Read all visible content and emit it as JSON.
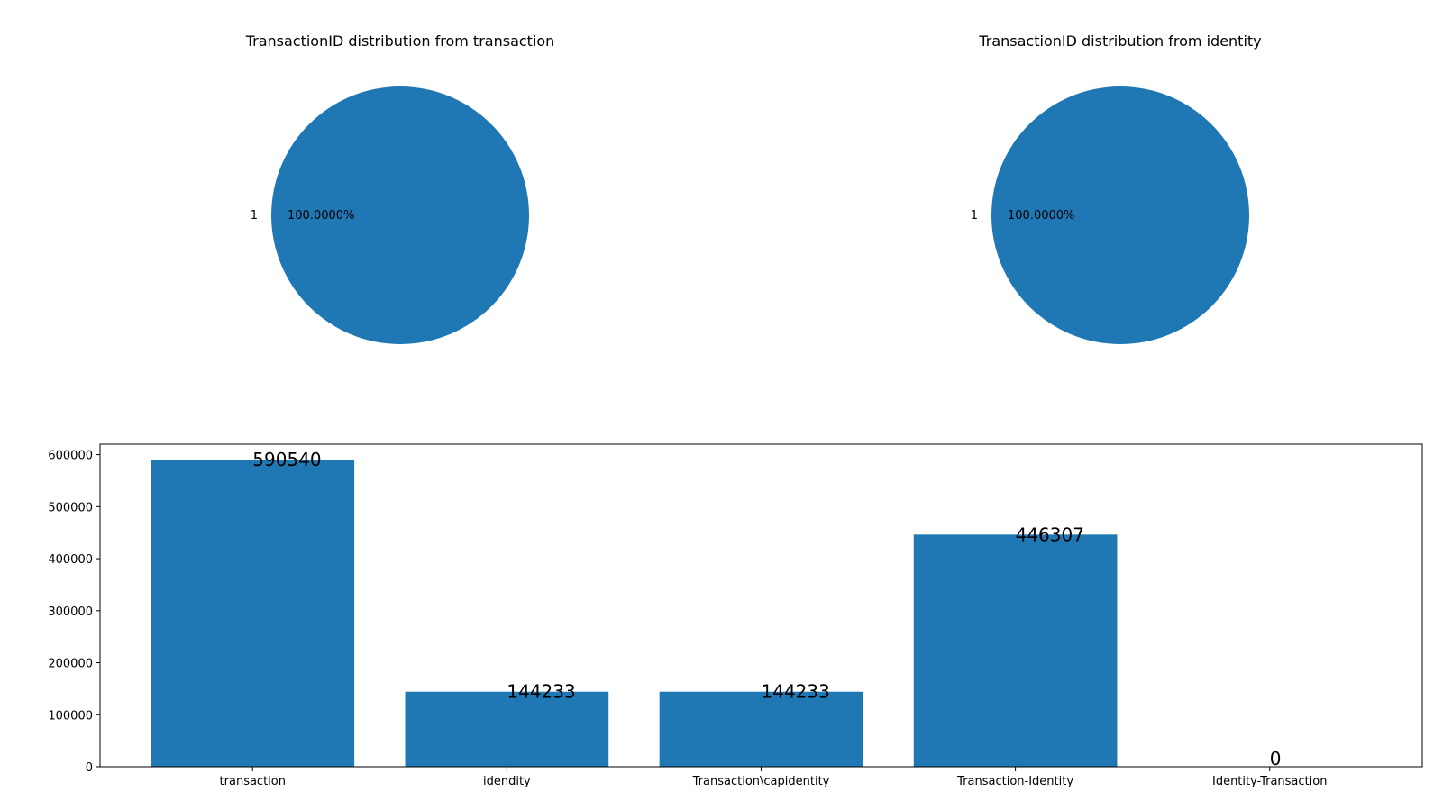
{
  "colors": {
    "series": "#1f77b4",
    "axis": "#000000",
    "background": "#ffffff"
  },
  "chart_data": [
    {
      "type": "pie",
      "title": "TransactionID distribution from transaction",
      "labels": [
        "1"
      ],
      "values": [
        100.0
      ],
      "autopct": [
        "100.0000%"
      ]
    },
    {
      "type": "pie",
      "title": "TransactionID distribution from identity",
      "labels": [
        "1"
      ],
      "values": [
        100.0
      ],
      "autopct": [
        "100.0000%"
      ]
    },
    {
      "type": "bar",
      "title": "",
      "xlabel": "",
      "ylabel": "",
      "categories": [
        "transaction",
        "idendity",
        "Transaction\\capidentity",
        "Transaction-Identity",
        "Identity-Transaction"
      ],
      "values": [
        590540,
        144233,
        144233,
        446307,
        0
      ],
      "data_labels": [
        "590540",
        "144233",
        "144233",
        "446307",
        "0"
      ],
      "ylim": [
        0,
        620077
      ],
      "yticks": [
        0,
        100000,
        200000,
        300000,
        400000,
        500000,
        600000
      ],
      "ytick_labels": [
        "0",
        "100000",
        "200000",
        "300000",
        "400000",
        "500000",
        "600000"
      ],
      "grid": false,
      "legend": "none"
    }
  ]
}
